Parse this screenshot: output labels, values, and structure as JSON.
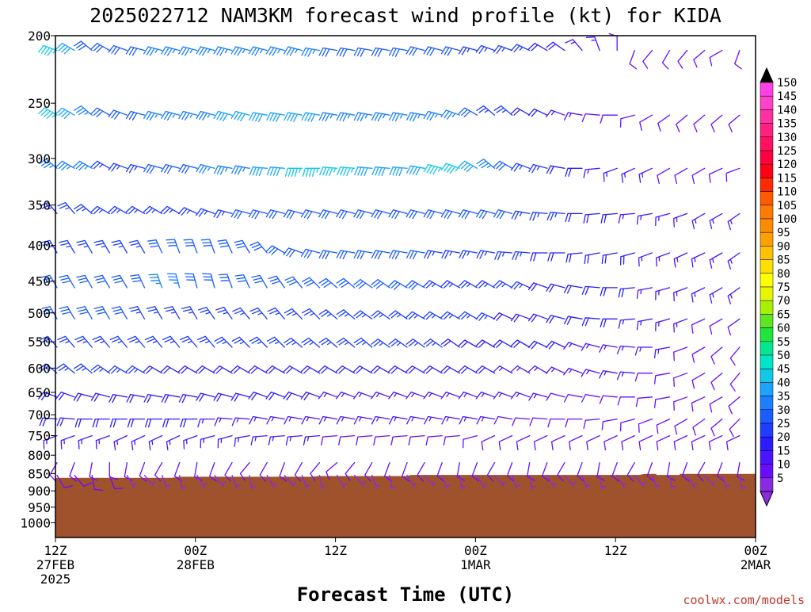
{
  "title": "2025022712 NAM3KM forecast wind profile (kt) for KIDA",
  "credit": "coolwx.com/models",
  "chart_data": {
    "type": "wind-barb-time-height",
    "title": "2025022712 NAM3KM forecast wind profile (kt) for KIDA",
    "xlabel": "Forecast Time (UTC)",
    "ylabel": "",
    "units": "kt",
    "x_range_hours": [
      0,
      60
    ],
    "y_range_hpa": [
      200,
      1050
    ],
    "y_scale": "log-pressure",
    "y_ticks": [
      200,
      250,
      300,
      350,
      400,
      450,
      500,
      550,
      600,
      650,
      700,
      750,
      800,
      850,
      900,
      950,
      1000
    ],
    "x_ticks": [
      {
        "hour": 0,
        "lines": [
          "12Z",
          "27FEB",
          "2025"
        ]
      },
      {
        "hour": 12,
        "lines": [
          "00Z",
          "28FEB"
        ]
      },
      {
        "hour": 24,
        "lines": [
          "12Z"
        ]
      },
      {
        "hour": 36,
        "lines": [
          "00Z",
          "1MAR"
        ]
      },
      {
        "hour": 48,
        "lines": [
          "12Z"
        ]
      },
      {
        "hour": 60,
        "lines": [
          "00Z",
          "2MAR"
        ]
      }
    ],
    "colorbar_levels": [
      5,
      10,
      15,
      20,
      25,
      30,
      35,
      40,
      45,
      50,
      55,
      60,
      65,
      70,
      75,
      80,
      85,
      90,
      95,
      100,
      105,
      110,
      115,
      120,
      125,
      130,
      135,
      140,
      145,
      150
    ],
    "colorbar_colors": [
      "#8a2be2",
      "#6a0dff",
      "#4a14ff",
      "#2a1cff",
      "#1f3dff",
      "#1a5cff",
      "#1a80ff",
      "#1aa3ff",
      "#10c8e8",
      "#00e6c8",
      "#00e890",
      "#1ee63c",
      "#5ee61e",
      "#a6f000",
      "#e6f500",
      "#ffff00",
      "#ffe000",
      "#ffc000",
      "#ffa000",
      "#ff8c00",
      "#ff7a00",
      "#ff5a00",
      "#ff2a00",
      "#ff0018",
      "#ff0040",
      "#ff1060",
      "#ff2080",
      "#ff30a0",
      "#ff40c8",
      "#ff40e6"
    ],
    "terrain_color": "#a0522d",
    "terrain_pressure_hpa": [
      [
        0,
        862
      ],
      [
        10,
        862
      ],
      [
        10.5,
        859
      ],
      [
        22,
        859
      ],
      [
        22.5,
        857
      ],
      [
        30,
        857
      ],
      [
        30.5,
        854
      ],
      [
        50,
        854
      ],
      [
        50.5,
        851
      ],
      [
        51.5,
        851
      ],
      [
        51.5,
        854
      ],
      [
        53.5,
        854
      ],
      [
        53.5,
        851
      ],
      [
        60,
        851
      ]
    ],
    "level_hpa": [
      210,
      260,
      310,
      360,
      410,
      460,
      510,
      560,
      610,
      660,
      710,
      750,
      820,
      855
    ],
    "times_hours": [
      0,
      1.5,
      3,
      4.5,
      6,
      7.5,
      9,
      10.5,
      12,
      13.5,
      15,
      16.5,
      18,
      19.5,
      21,
      22.5,
      24,
      25.5,
      27,
      28.5,
      30,
      31.5,
      33,
      34.5,
      36,
      37.5,
      39,
      40.5,
      42,
      43.5,
      45,
      46.5,
      48,
      49.5,
      51,
      52.5,
      54,
      55.5,
      57,
      58.5,
      60
    ],
    "wind_speed_kt": [
      [
        45,
        40,
        30,
        30,
        30,
        30,
        35,
        35,
        35,
        35,
        35,
        35,
        35,
        35,
        35,
        35,
        30,
        30,
        30,
        30,
        30,
        30,
        30,
        30,
        25,
        25,
        25,
        25,
        20,
        20,
        15,
        15,
        10,
        10,
        10,
        10,
        10,
        10,
        10,
        10,
        10
      ],
      [
        45,
        40,
        35,
        30,
        30,
        30,
        35,
        35,
        35,
        35,
        40,
        40,
        40,
        40,
        40,
        40,
        35,
        35,
        35,
        35,
        35,
        35,
        35,
        35,
        30,
        25,
        25,
        20,
        20,
        15,
        15,
        10,
        10,
        10,
        10,
        10,
        10,
        10,
        10,
        10,
        10
      ],
      [
        35,
        35,
        35,
        25,
        25,
        25,
        30,
        30,
        30,
        35,
        35,
        35,
        40,
        40,
        45,
        45,
        45,
        45,
        40,
        40,
        40,
        40,
        45,
        45,
        40,
        35,
        30,
        25,
        25,
        20,
        20,
        15,
        15,
        15,
        15,
        10,
        10,
        10,
        10,
        10,
        10
      ],
      [
        25,
        25,
        25,
        25,
        25,
        25,
        25,
        25,
        25,
        25,
        25,
        30,
        30,
        30,
        30,
        30,
        30,
        30,
        30,
        30,
        30,
        30,
        30,
        30,
        30,
        30,
        30,
        25,
        25,
        25,
        20,
        20,
        20,
        15,
        15,
        15,
        15,
        15,
        15,
        15,
        15
      ],
      [
        25,
        25,
        25,
        25,
        25,
        25,
        30,
        30,
        30,
        30,
        30,
        30,
        30,
        30,
        30,
        30,
        30,
        30,
        30,
        30,
        30,
        30,
        25,
        25,
        25,
        25,
        25,
        25,
        20,
        20,
        20,
        20,
        20,
        20,
        15,
        15,
        15,
        15,
        15,
        15,
        15
      ],
      [
        30,
        30,
        30,
        30,
        30,
        30,
        35,
        35,
        30,
        30,
        30,
        30,
        30,
        30,
        30,
        30,
        30,
        30,
        30,
        30,
        30,
        30,
        25,
        25,
        25,
        25,
        25,
        25,
        20,
        20,
        20,
        20,
        20,
        20,
        15,
        15,
        15,
        15,
        15,
        15,
        15
      ],
      [
        30,
        30,
        30,
        30,
        30,
        25,
        25,
        25,
        25,
        25,
        25,
        25,
        25,
        25,
        25,
        25,
        25,
        25,
        25,
        25,
        25,
        25,
        25,
        25,
        25,
        25,
        20,
        20,
        20,
        20,
        20,
        20,
        20,
        15,
        15,
        15,
        15,
        10,
        10,
        10,
        10
      ],
      [
        25,
        25,
        25,
        25,
        25,
        25,
        25,
        25,
        25,
        25,
        25,
        25,
        25,
        25,
        25,
        25,
        25,
        25,
        25,
        25,
        25,
        25,
        25,
        20,
        20,
        20,
        20,
        20,
        20,
        20,
        15,
        15,
        15,
        15,
        15,
        15,
        10,
        10,
        10,
        10,
        10
      ],
      [
        25,
        25,
        25,
        25,
        25,
        25,
        20,
        20,
        20,
        20,
        20,
        20,
        20,
        20,
        20,
        20,
        20,
        20,
        20,
        20,
        20,
        20,
        20,
        20,
        20,
        20,
        15,
        15,
        15,
        15,
        15,
        15,
        15,
        15,
        10,
        10,
        10,
        10,
        10,
        10,
        10
      ],
      [
        20,
        20,
        20,
        20,
        20,
        20,
        20,
        20,
        20,
        20,
        20,
        20,
        20,
        20,
        20,
        20,
        15,
        15,
        15,
        15,
        15,
        15,
        15,
        15,
        15,
        15,
        15,
        15,
        15,
        10,
        10,
        10,
        10,
        10,
        10,
        10,
        10,
        10,
        10,
        10,
        10
      ],
      [
        20,
        20,
        20,
        20,
        20,
        20,
        20,
        20,
        20,
        15,
        15,
        15,
        15,
        15,
        15,
        15,
        15,
        15,
        15,
        15,
        15,
        15,
        15,
        15,
        15,
        15,
        10,
        10,
        10,
        10,
        10,
        10,
        10,
        10,
        10,
        10,
        10,
        10,
        10,
        10,
        10
      ],
      [
        15,
        15,
        15,
        15,
        15,
        15,
        15,
        15,
        15,
        15,
        15,
        15,
        15,
        15,
        15,
        15,
        10,
        10,
        10,
        10,
        10,
        10,
        10,
        10,
        10,
        10,
        10,
        10,
        10,
        10,
        10,
        10,
        10,
        10,
        10,
        10,
        10,
        10,
        10,
        10,
        10
      ],
      [
        10,
        10,
        10,
        10,
        10,
        10,
        10,
        10,
        10,
        10,
        10,
        10,
        10,
        10,
        10,
        10,
        10,
        10,
        10,
        10,
        10,
        10,
        10,
        10,
        10,
        10,
        10,
        10,
        10,
        10,
        10,
        10,
        10,
        10,
        10,
        10,
        10,
        10,
        10,
        10,
        10
      ],
      [
        10,
        10,
        10,
        10,
        5,
        5,
        5,
        5,
        5,
        5,
        5,
        5,
        5,
        5,
        5,
        5,
        5,
        5,
        5,
        5,
        5,
        5,
        5,
        5,
        5,
        5,
        5,
        5,
        5,
        5,
        5,
        5,
        5,
        5,
        5,
        5,
        5,
        5,
        5,
        5,
        5
      ]
    ],
    "wind_dir_deg": [
      [
        290,
        300,
        310,
        300,
        290,
        285,
        285,
        285,
        285,
        285,
        285,
        285,
        285,
        285,
        285,
        280,
        280,
        280,
        280,
        280,
        280,
        285,
        285,
        285,
        285,
        290,
        290,
        295,
        300,
        305,
        320,
        340,
        0,
        200,
        220,
        210,
        220,
        230,
        240,
        200,
        230
      ],
      [
        300,
        300,
        310,
        300,
        290,
        285,
        285,
        285,
        285,
        285,
        285,
        285,
        280,
        280,
        280,
        280,
        280,
        280,
        280,
        280,
        280,
        280,
        285,
        290,
        300,
        310,
        310,
        300,
        295,
        290,
        280,
        275,
        270,
        255,
        240,
        235,
        230,
        230,
        230,
        230,
        240
      ],
      [
        310,
        300,
        300,
        300,
        290,
        285,
        285,
        285,
        285,
        285,
        280,
        280,
        275,
        275,
        270,
        270,
        275,
        275,
        275,
        275,
        275,
        280,
        285,
        290,
        300,
        310,
        300,
        290,
        285,
        280,
        270,
        265,
        250,
        245,
        245,
        240,
        240,
        240,
        245,
        250,
        240
      ],
      [
        320,
        320,
        310,
        300,
        300,
        300,
        300,
        300,
        295,
        290,
        285,
        285,
        285,
        285,
        285,
        285,
        285,
        285,
        285,
        285,
        285,
        285,
        285,
        285,
        285,
        285,
        285,
        280,
        275,
        275,
        270,
        265,
        265,
        265,
        260,
        255,
        250,
        240,
        240,
        235,
        230
      ],
      [
        330,
        330,
        330,
        330,
        330,
        330,
        335,
        340,
        340,
        340,
        335,
        330,
        320,
        300,
        290,
        285,
        280,
        280,
        280,
        280,
        280,
        280,
        280,
        280,
        280,
        280,
        275,
        275,
        270,
        270,
        265,
        260,
        260,
        255,
        250,
        250,
        245,
        245,
        240,
        235,
        230
      ],
      [
        330,
        330,
        330,
        330,
        330,
        335,
        340,
        345,
        345,
        345,
        340,
        335,
        330,
        325,
        320,
        315,
        310,
        310,
        305,
        305,
        300,
        300,
        300,
        300,
        300,
        300,
        300,
        295,
        290,
        285,
        280,
        275,
        270,
        265,
        260,
        255,
        250,
        245,
        240,
        235,
        230
      ],
      [
        330,
        330,
        330,
        330,
        330,
        330,
        330,
        330,
        330,
        325,
        325,
        320,
        320,
        320,
        315,
        315,
        310,
        310,
        305,
        305,
        305,
        300,
        300,
        300,
        300,
        295,
        295,
        290,
        290,
        285,
        280,
        275,
        270,
        265,
        260,
        255,
        250,
        245,
        240,
        235,
        230
      ],
      [
        320,
        320,
        320,
        320,
        320,
        320,
        320,
        320,
        320,
        320,
        315,
        315,
        315,
        315,
        310,
        310,
        310,
        310,
        310,
        305,
        305,
        305,
        305,
        305,
        300,
        300,
        300,
        300,
        295,
        295,
        290,
        285,
        280,
        275,
        270,
        260,
        250,
        240,
        230,
        220,
        210
      ],
      [
        310,
        310,
        310,
        305,
        300,
        300,
        300,
        300,
        300,
        300,
        300,
        300,
        300,
        300,
        300,
        300,
        300,
        300,
        300,
        300,
        300,
        300,
        300,
        300,
        300,
        300,
        300,
        300,
        300,
        295,
        290,
        285,
        280,
        275,
        270,
        260,
        250,
        240,
        230,
        220,
        210
      ],
      [
        290,
        290,
        285,
        285,
        280,
        280,
        280,
        280,
        280,
        285,
        285,
        285,
        290,
        290,
        290,
        290,
        290,
        290,
        290,
        290,
        290,
        290,
        290,
        290,
        290,
        290,
        290,
        290,
        285,
        285,
        280,
        280,
        275,
        270,
        265,
        260,
        250,
        245,
        240,
        230,
        225
      ],
      [
        275,
        275,
        270,
        270,
        270,
        270,
        270,
        270,
        270,
        270,
        275,
        275,
        280,
        280,
        280,
        280,
        280,
        280,
        280,
        280,
        280,
        280,
        280,
        280,
        280,
        280,
        280,
        275,
        275,
        270,
        270,
        265,
        260,
        255,
        250,
        245,
        240,
        235,
        230,
        225,
        220
      ],
      [
        250,
        250,
        250,
        250,
        245,
        245,
        245,
        245,
        250,
        255,
        255,
        260,
        265,
        265,
        265,
        265,
        265,
        265,
        265,
        265,
        265,
        265,
        265,
        265,
        255,
        245,
        245,
        245,
        245,
        245,
        245,
        245,
        245,
        245,
        245,
        245,
        245,
        245,
        245,
        245,
        245
      ],
      [
        210,
        200,
        190,
        180,
        190,
        200,
        210,
        200,
        190,
        200,
        210,
        220,
        210,
        200,
        210,
        220,
        230,
        220,
        210,
        200,
        200,
        210,
        200,
        190,
        200,
        210,
        200,
        190,
        200,
        210,
        200,
        190,
        200,
        210,
        200,
        190,
        200,
        210,
        200,
        190,
        200
      ],
      [
        150,
        140,
        170,
        160,
        150,
        140,
        160,
        170,
        150,
        140,
        160,
        170,
        150,
        140,
        160,
        170,
        150,
        140,
        160,
        170,
        150,
        140,
        160,
        170,
        150,
        140,
        160,
        170,
        150,
        140,
        160,
        170,
        150,
        140,
        160,
        170,
        150,
        140,
        160,
        170,
        150
      ]
    ]
  }
}
